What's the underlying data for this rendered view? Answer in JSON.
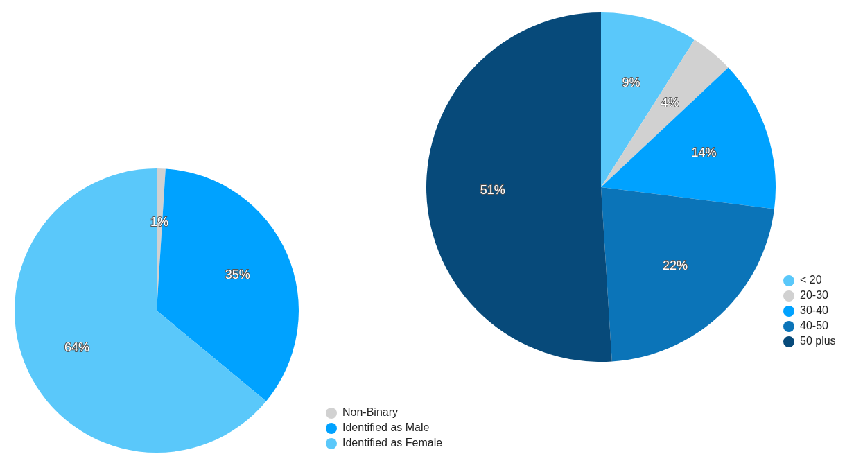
{
  "chart_data": [
    {
      "type": "pie",
      "categories": [
        "Non-Binary",
        "Identified as Male",
        "Identified as Female"
      ],
      "values": [
        1,
        35,
        64
      ],
      "value_labels": [
        "1%",
        "35%",
        "64%"
      ],
      "colors": [
        "#d1d1d1",
        "#00a2ff",
        "#5ac8fa"
      ],
      "legend": "right"
    },
    {
      "type": "pie",
      "categories": [
        "< 20",
        "20-30",
        "30-40",
        "40-50",
        "50 plus"
      ],
      "values": [
        9,
        4,
        14,
        22,
        51
      ],
      "value_labels": [
        "9%",
        "4%",
        "14%",
        "22%",
        "51%"
      ],
      "colors": [
        "#5ac8fa",
        "#d1d1d1",
        "#00a2ff",
        "#0b74b8",
        "#074a7a"
      ],
      "legend": "right"
    }
  ]
}
